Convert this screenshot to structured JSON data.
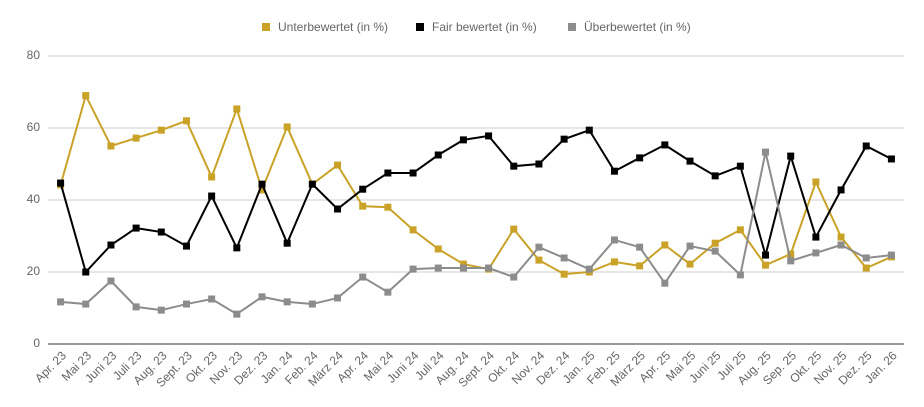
{
  "chart_data": {
    "type": "line",
    "categories": [
      "Apr. 23",
      "Mai 23",
      "Juni 23",
      "Juli 23",
      "Aug. 23",
      "Sept. 23",
      "Okt. 23",
      "Nov. 23",
      "Dez. 23",
      "Jan. 24",
      "Feb. 24",
      "März 24",
      "Apr. 24",
      "Mai 24",
      "Juni 24",
      "Juli 24",
      "Aug. 24",
      "Sept. 24",
      "Okt. 24",
      "Nov. 24",
      "Dez. 24",
      "Jan. 25",
      "Feb. 25",
      "März 25",
      "Apr. 25",
      "Mai 25",
      "Juni 25",
      "Juli 25",
      "Aug. 25",
      "Sep. 25",
      "Okt. 25",
      "Nov. 25",
      "Dez. 25",
      "Jan. 26"
    ],
    "series": [
      {
        "name": "Unterbewertet (in %)",
        "color": "#c9a227",
        "values": [
          44.2,
          69,
          55,
          57.2,
          59.4,
          62,
          46.4,
          65.3,
          42.8,
          60.3,
          44.4,
          49.7,
          38.3,
          38,
          31.7,
          26.4,
          22.2,
          20.8,
          31.9,
          23.3,
          19.4,
          20,
          22.8,
          21.7,
          27.5,
          22.2,
          28,
          31.7,
          21.9,
          25,
          45,
          29.7,
          21.1,
          24.2
        ]
      },
      {
        "name": "Fair bewertet (in %)",
        "color": "#000000",
        "values": [
          44.7,
          20,
          27.5,
          32.2,
          31.1,
          27.2,
          41.1,
          26.7,
          44.4,
          28,
          44.4,
          37.5,
          43,
          47.5,
          47.5,
          52.5,
          56.7,
          57.8,
          49.4,
          50,
          56.9,
          59.4,
          48,
          51.7,
          55.3,
          50.8,
          46.7,
          49.4,
          24.7,
          52.2,
          29.7,
          42.8,
          55,
          51.4
        ]
      },
      {
        "name": "Überbewertet (in %)",
        "color": "#8c8c8c",
        "values": [
          11.7,
          11.1,
          17.5,
          10.3,
          9.4,
          11.1,
          12.5,
          8.3,
          13.1,
          11.7,
          11.1,
          12.8,
          18.6,
          14.4,
          20.8,
          21.1,
          21.1,
          21.1,
          18.6,
          26.9,
          23.9,
          20.8,
          28.9,
          26.9,
          16.9,
          27.2,
          25.8,
          19.2,
          53.3,
          23.1,
          25.3,
          27.5,
          23.9,
          24.7
        ]
      }
    ],
    "ylim": [
      0,
      80
    ],
    "yticks": [
      0,
      20,
      40,
      60,
      80
    ],
    "grid": true
  }
}
